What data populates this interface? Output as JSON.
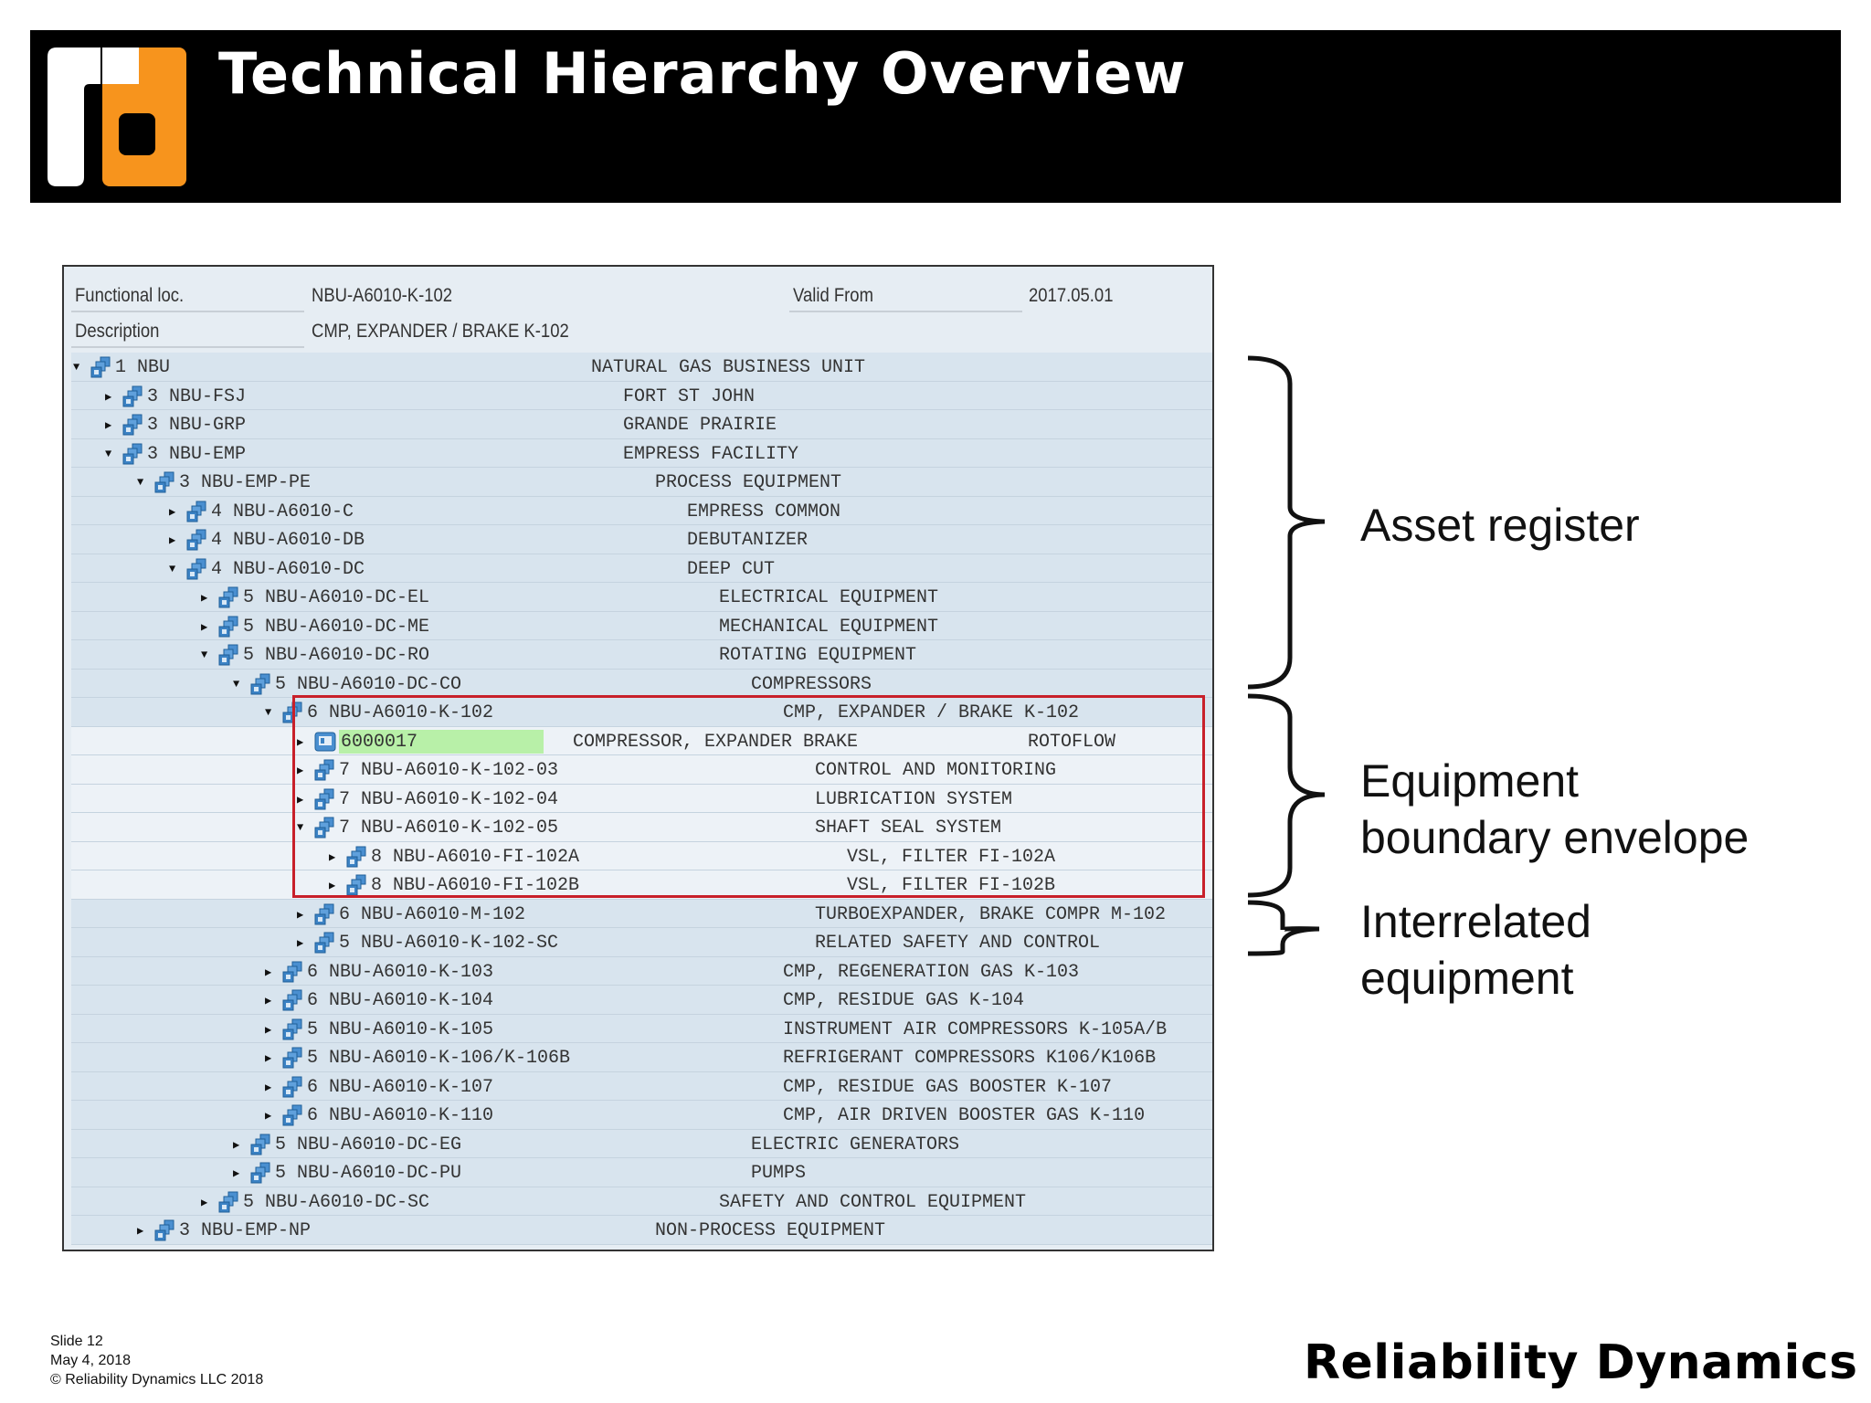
{
  "slide": {
    "title": "Technical Hierarchy Overview",
    "brand": "Reliability Dynamics",
    "logo_text": "rd",
    "footer": {
      "slide": "Slide 12",
      "date": "May 4, 2018",
      "copyright": "© Reliability Dynamics LLC 2018"
    },
    "colors": {
      "banner": "#000000",
      "logo_orange": "#f7941d",
      "highlight_box": "#c8202a",
      "tree_row": "#d8e4ee"
    }
  },
  "panel": {
    "functional_loc_label": "Functional loc.",
    "functional_loc_value": "NBU-A6010-K-102",
    "valid_from_label": "Valid From",
    "valid_from_value": "2017.05.01",
    "description_label": "Description",
    "description_value": "CMP, EXPANDER / BRAKE K-102"
  },
  "tree": [
    {
      "depth": 0,
      "expanded": true,
      "id": "1 NBU",
      "desc": "NATURAL GAS BUSINESS UNIT",
      "icon": "functional-location-icon"
    },
    {
      "depth": 1,
      "expanded": false,
      "id": "3 NBU-FSJ",
      "desc": "FORT ST JOHN",
      "icon": "functional-location-icon"
    },
    {
      "depth": 1,
      "expanded": false,
      "id": "3 NBU-GRP",
      "desc": "GRANDE PRAIRIE",
      "icon": "functional-location-icon"
    },
    {
      "depth": 1,
      "expanded": true,
      "id": "3 NBU-EMP",
      "desc": "EMPRESS FACILITY",
      "icon": "functional-location-icon"
    },
    {
      "depth": 2,
      "expanded": true,
      "id": "3 NBU-EMP-PE",
      "desc": "PROCESS EQUIPMENT",
      "icon": "functional-location-icon"
    },
    {
      "depth": 3,
      "expanded": false,
      "id": "4 NBU-A6010-C",
      "desc": "EMPRESS COMMON",
      "icon": "functional-location-icon"
    },
    {
      "depth": 3,
      "expanded": false,
      "id": "4 NBU-A6010-DB",
      "desc": "DEBUTANIZER",
      "icon": "functional-location-icon"
    },
    {
      "depth": 3,
      "expanded": true,
      "id": "4 NBU-A6010-DC",
      "desc": "DEEP CUT",
      "icon": "functional-location-icon"
    },
    {
      "depth": 4,
      "expanded": false,
      "id": "5 NBU-A6010-DC-EL",
      "desc": "ELECTRICAL EQUIPMENT",
      "icon": "functional-location-icon"
    },
    {
      "depth": 4,
      "expanded": false,
      "id": "5 NBU-A6010-DC-ME",
      "desc": "MECHANICAL EQUIPMENT",
      "icon": "functional-location-icon"
    },
    {
      "depth": 4,
      "expanded": true,
      "id": "5 NBU-A6010-DC-RO",
      "desc": "ROTATING EQUIPMENT",
      "icon": "functional-location-icon"
    },
    {
      "depth": 5,
      "expanded": true,
      "id": "5 NBU-A6010-DC-CO",
      "desc": "COMPRESSORS",
      "icon": "functional-location-icon"
    },
    {
      "depth": 6,
      "expanded": true,
      "id": "6 NBU-A6010-K-102",
      "desc": "CMP, EXPANDER / BRAKE K-102",
      "icon": "functional-location-icon"
    },
    {
      "depth": 7,
      "expanded": false,
      "id": "6000017",
      "desc": "COMPRESSOR, EXPANDER BRAKE",
      "extra": "ROTOFLOW",
      "icon": "equipment-icon",
      "equipment": true
    },
    {
      "depth": 7,
      "expanded": false,
      "id": "7 NBU-A6010-K-102-03",
      "desc": "CONTROL AND MONITORING",
      "icon": "functional-location-icon"
    },
    {
      "depth": 7,
      "expanded": false,
      "id": "7 NBU-A6010-K-102-04",
      "desc": "LUBRICATION SYSTEM",
      "icon": "functional-location-icon"
    },
    {
      "depth": 7,
      "expanded": true,
      "id": "7 NBU-A6010-K-102-05",
      "desc": "SHAFT SEAL SYSTEM",
      "icon": "functional-location-icon"
    },
    {
      "depth": 8,
      "expanded": false,
      "id": "8 NBU-A6010-FI-102A",
      "desc": "VSL, FILTER FI-102A",
      "icon": "functional-location-icon"
    },
    {
      "depth": 8,
      "expanded": false,
      "id": "8 NBU-A6010-FI-102B",
      "desc": "VSL, FILTER FI-102B",
      "icon": "functional-location-icon"
    },
    {
      "depth": 7,
      "expanded": false,
      "id": "6 NBU-A6010-M-102",
      "desc": "TURBOEXPANDER, BRAKE COMPR M-102",
      "icon": "functional-location-icon"
    },
    {
      "depth": 7,
      "expanded": false,
      "id": "5 NBU-A6010-K-102-SC",
      "desc": "RELATED SAFETY AND CONTROL",
      "icon": "functional-location-icon"
    },
    {
      "depth": 6,
      "expanded": false,
      "id": "6 NBU-A6010-K-103",
      "desc": "CMP, REGENERATION GAS K-103",
      "icon": "functional-location-icon"
    },
    {
      "depth": 6,
      "expanded": false,
      "id": "6 NBU-A6010-K-104",
      "desc": "CMP, RESIDUE GAS K-104",
      "icon": "functional-location-icon"
    },
    {
      "depth": 6,
      "expanded": false,
      "id": "5 NBU-A6010-K-105",
      "desc": "INSTRUMENT AIR COMPRESSORS K-105A/B",
      "icon": "functional-location-icon"
    },
    {
      "depth": 6,
      "expanded": false,
      "id": "5 NBU-A6010-K-106/K-106B",
      "desc": "REFRIGERANT COMPRESSORS K106/K106B",
      "icon": "functional-location-icon"
    },
    {
      "depth": 6,
      "expanded": false,
      "id": "6 NBU-A6010-K-107",
      "desc": "CMP, RESIDUE GAS BOOSTER K-107",
      "icon": "functional-location-icon"
    },
    {
      "depth": 6,
      "expanded": false,
      "id": "6 NBU-A6010-K-110",
      "desc": "CMP, AIR DRIVEN BOOSTER GAS K-110",
      "icon": "functional-location-icon"
    },
    {
      "depth": 5,
      "expanded": false,
      "id": "5 NBU-A6010-DC-EG",
      "desc": "ELECTRIC GENERATORS",
      "icon": "functional-location-icon"
    },
    {
      "depth": 5,
      "expanded": false,
      "id": "5 NBU-A6010-DC-PU",
      "desc": "PUMPS",
      "icon": "functional-location-icon"
    },
    {
      "depth": 4,
      "expanded": false,
      "id": "5 NBU-A6010-DC-SC",
      "desc": "SAFETY AND CONTROL EQUIPMENT",
      "icon": "functional-location-icon"
    },
    {
      "depth": 2,
      "expanded": false,
      "id": "3 NBU-EMP-NP",
      "desc": "NON-PROCESS EQUIPMENT",
      "icon": "functional-location-icon"
    }
  ],
  "annotations": {
    "asset_register": "Asset register",
    "boundary_line1": "Equipment",
    "boundary_line2": "boundary envelope",
    "interrelated_line1": "Interrelated",
    "interrelated_line2": "equipment"
  }
}
